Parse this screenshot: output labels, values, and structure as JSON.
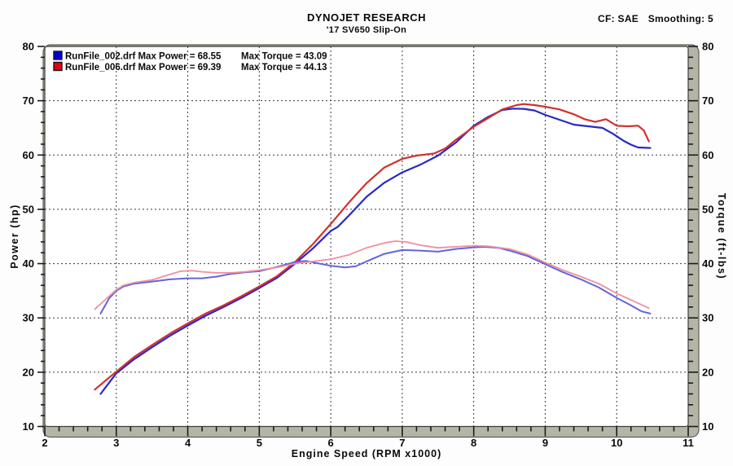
{
  "header": {
    "title": "DYNOJET RESEARCH",
    "subtitle": "'17 SV650 Slip-On",
    "cf_label": "CF: SAE",
    "smoothing_label": "Smoothing: 5"
  },
  "legend": [
    {
      "file": "RunFile_002.drf",
      "power_label": "Max Power = 68.55",
      "torque_label": "Max Torque = 43.09",
      "swatch_color": "#0000e0"
    },
    {
      "file": "RunFile_006.drf",
      "power_label": "Max Power = 69.39",
      "torque_label": "Max Torque = 44.13",
      "swatch_color": "#e00010"
    }
  ],
  "chart_data": {
    "type": "line",
    "title": "DYNOJET RESEARCH",
    "subtitle": "'17 SV650 Slip-On",
    "grid": {
      "show": true,
      "style": "dashed",
      "color": "#3a3a3a"
    },
    "frame_band_color": "#b5b5a7",
    "x_axis": {
      "label": "Engine Speed (RPM x1000)",
      "min": 2,
      "max": 11,
      "major_step": 1,
      "minor_step": 0.2
    },
    "y_left": {
      "label": "Power (hp)",
      "min": 10,
      "max": 80,
      "major_step": 10,
      "minor_step": 2
    },
    "y_right": {
      "label": "Torque (ft-lbs)",
      "min": 10,
      "max": 80,
      "major_step": 10,
      "minor_step": 2
    },
    "series": [
      {
        "name": "RunFile_002 Power (hp)",
        "axis": "left",
        "color": "#2828c8",
        "width": 2.2,
        "max_value": 68.55,
        "x": [
          2.78,
          3.0,
          3.25,
          3.5,
          3.75,
          4.0,
          4.25,
          4.5,
          4.75,
          5.0,
          5.25,
          5.5,
          5.75,
          6.0,
          6.1,
          6.25,
          6.5,
          6.75,
          7.0,
          7.25,
          7.5,
          7.75,
          8.0,
          8.2,
          8.4,
          8.55,
          8.7,
          8.85,
          9.0,
          9.2,
          9.4,
          9.6,
          9.8,
          9.95,
          10.1,
          10.2,
          10.3,
          10.47
        ],
        "y": [
          16.0,
          19.8,
          22.4,
          24.6,
          26.7,
          28.6,
          30.4,
          32.0,
          33.7,
          35.5,
          37.4,
          40.0,
          42.8,
          46.0,
          46.8,
          48.8,
          52.3,
          54.9,
          56.8,
          58.2,
          59.9,
          62.3,
          65.4,
          67.0,
          68.3,
          68.55,
          68.5,
          68.2,
          67.4,
          66.5,
          65.6,
          65.3,
          65.0,
          63.9,
          62.6,
          61.9,
          61.4,
          61.3
        ]
      },
      {
        "name": "RunFile_006 Power (hp)",
        "axis": "left",
        "color": "#d23030",
        "width": 2.2,
        "max_value": 69.39,
        "x": [
          2.7,
          3.0,
          3.25,
          3.5,
          3.75,
          4.0,
          4.25,
          4.5,
          4.75,
          5.0,
          5.25,
          5.5,
          5.75,
          6.0,
          6.25,
          6.5,
          6.75,
          7.0,
          7.2,
          7.45,
          7.6,
          7.75,
          8.0,
          8.2,
          8.4,
          8.6,
          8.7,
          8.85,
          9.0,
          9.2,
          9.4,
          9.55,
          9.7,
          9.85,
          10.0,
          10.15,
          10.3,
          10.38,
          10.45
        ],
        "y": [
          16.8,
          20.1,
          22.8,
          25.0,
          27.1,
          29.0,
          30.8,
          32.3,
          34.0,
          35.8,
          37.7,
          40.3,
          43.6,
          47.3,
          51.2,
          54.8,
          57.7,
          59.3,
          59.9,
          60.3,
          61.2,
          62.8,
          65.2,
          66.8,
          68.4,
          69.2,
          69.39,
          69.2,
          68.9,
          68.4,
          67.5,
          66.6,
          66.1,
          66.6,
          65.4,
          65.3,
          65.4,
          64.5,
          62.5
        ]
      },
      {
        "name": "RunFile_002 Torque (ft-lbs)",
        "axis": "right",
        "color": "#6464dc",
        "width": 2.0,
        "max_value": 43.09,
        "x": [
          2.78,
          2.9,
          3.0,
          3.1,
          3.25,
          3.5,
          3.75,
          4.0,
          4.2,
          4.4,
          4.6,
          4.8,
          5.0,
          5.25,
          5.5,
          5.65,
          5.8,
          6.0,
          6.2,
          6.35,
          6.5,
          6.75,
          7.0,
          7.25,
          7.5,
          7.75,
          8.0,
          8.15,
          8.35,
          8.5,
          8.75,
          9.0,
          9.25,
          9.5,
          9.75,
          10.0,
          10.2,
          10.35,
          10.47
        ],
        "y": [
          30.8,
          33.6,
          35.0,
          35.8,
          36.3,
          36.7,
          37.1,
          37.3,
          37.3,
          37.6,
          38.1,
          38.4,
          38.6,
          39.4,
          40.3,
          40.5,
          40.1,
          39.6,
          39.3,
          39.5,
          40.4,
          41.8,
          42.5,
          42.4,
          42.2,
          42.7,
          43.0,
          43.09,
          42.9,
          42.4,
          41.4,
          39.9,
          38.4,
          37.1,
          35.6,
          33.7,
          32.3,
          31.2,
          30.8
        ]
      },
      {
        "name": "RunFile_006 Torque (ft-lbs)",
        "axis": "right",
        "color": "#f0909e",
        "width": 1.8,
        "max_value": 44.13,
        "x": [
          2.7,
          2.9,
          3.0,
          3.1,
          3.25,
          3.5,
          3.75,
          3.9,
          4.05,
          4.2,
          4.4,
          4.6,
          4.8,
          5.0,
          5.25,
          5.5,
          5.75,
          6.0,
          6.25,
          6.5,
          6.75,
          6.9,
          7.05,
          7.25,
          7.5,
          7.75,
          8.0,
          8.2,
          8.5,
          8.75,
          9.0,
          9.25,
          9.5,
          9.75,
          10.0,
          10.2,
          10.45
        ],
        "y": [
          31.6,
          34.0,
          35.2,
          36.0,
          36.5,
          37.0,
          38.0,
          38.6,
          38.7,
          38.5,
          38.3,
          38.3,
          38.5,
          38.8,
          39.3,
          40.0,
          40.4,
          40.8,
          41.6,
          42.9,
          43.8,
          44.13,
          44.0,
          43.4,
          42.9,
          43.1,
          43.3,
          43.2,
          42.7,
          41.7,
          40.2,
          38.8,
          37.6,
          36.3,
          34.5,
          33.3,
          31.8
        ]
      }
    ]
  }
}
